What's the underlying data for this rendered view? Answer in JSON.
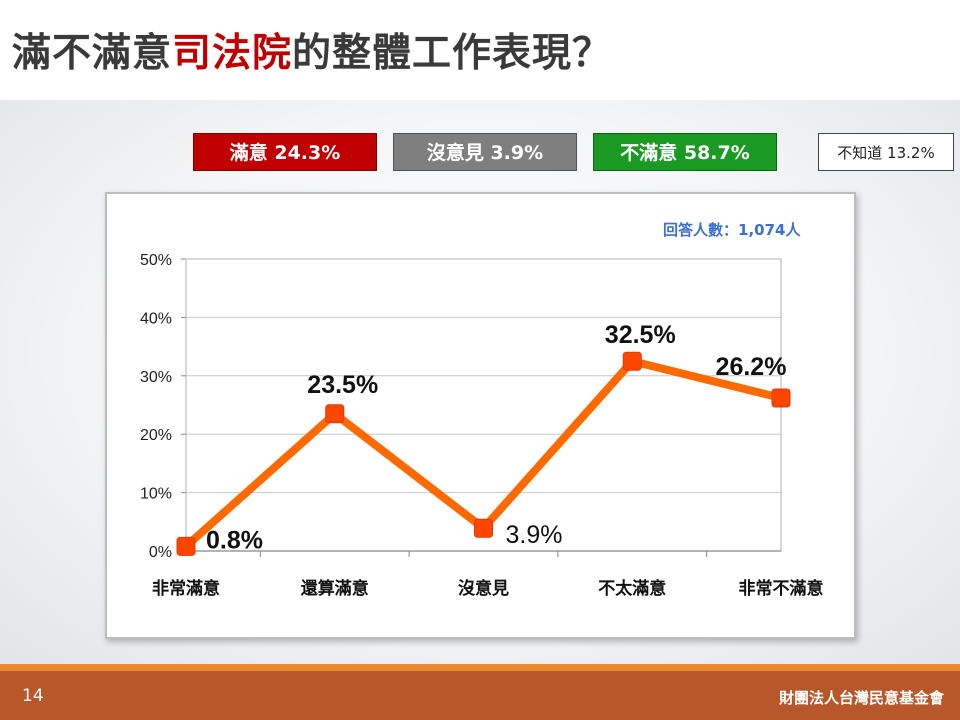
{
  "title": {
    "before": "滿不滿意",
    "highlight": "司法院",
    "after": "的整體工作表現？"
  },
  "summary": [
    {
      "label": "滿意 24.3%"
    },
    {
      "label": "沒意見 3.9%"
    },
    {
      "label": "不滿意 58.7%"
    },
    {
      "label": "不知道 13.2%"
    }
  ],
  "respondents": "回答人數：1,074人",
  "chart_data": {
    "type": "line",
    "categories": [
      "非常滿意",
      "還算滿意",
      "沒意見",
      "不太滿意",
      "非常不滿意"
    ],
    "values": [
      0.8,
      23.5,
      3.9,
      32.5,
      26.2
    ],
    "data_labels": [
      "0.8%",
      "23.5%",
      "3.9%",
      "32.5%",
      "26.2%"
    ],
    "y_ticks": [
      "0%",
      "10%",
      "20%",
      "30%",
      "40%",
      "50%"
    ],
    "ylim": [
      0,
      50
    ],
    "line_color": "#ff6a00",
    "marker_color": "#ff4500",
    "grid": true
  },
  "footer": {
    "page": "14",
    "org": "財團法人台灣民意基金會"
  },
  "colors": {
    "satisfied": "#c00000",
    "neutral": "#7f7f7f",
    "dissatisfied": "#1a9a22",
    "footer": "#b8572a"
  }
}
